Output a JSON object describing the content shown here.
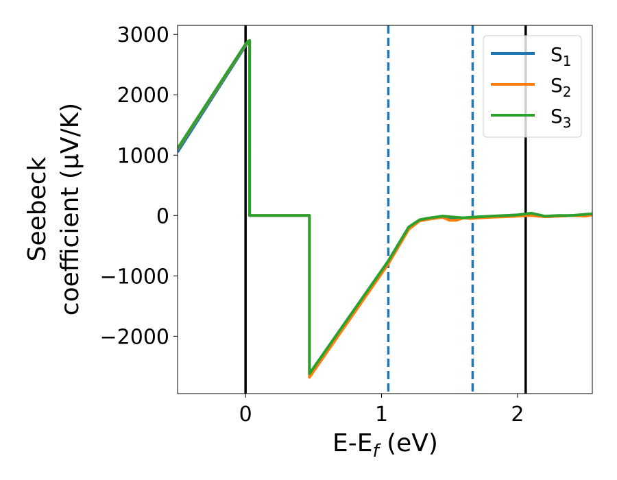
{
  "chart_data": {
    "type": "line",
    "xlabel_main": "E-E",
    "xlabel_sub": "f",
    "xlabel_unit": " (eV)",
    "ylabel_line1": "Seebeck",
    "ylabel_line2": "coefficient  (μV/K)",
    "xlim": [
      -0.5,
      2.55
    ],
    "ylim": [
      -2950,
      3150
    ],
    "xticks": [
      0,
      1,
      2
    ],
    "xtick_labels": [
      "0",
      "1",
      "2"
    ],
    "yticks": [
      -2000,
      -1000,
      0,
      1000,
      2000,
      3000
    ],
    "ytick_labels": [
      "−2000",
      "−1000",
      "0",
      "1000",
      "2000",
      "3000"
    ],
    "grid": false,
    "legend_position": "upper right",
    "vlines": [
      {
        "x": 0.0,
        "style": "solid",
        "color": "#000000"
      },
      {
        "x": 1.05,
        "style": "dashed",
        "color": "#1f77b4"
      },
      {
        "x": 1.67,
        "style": "dashed",
        "color": "#1f77b4"
      },
      {
        "x": 2.06,
        "style": "solid",
        "color": "#000000"
      }
    ],
    "series": [
      {
        "name": "S",
        "sub": "1",
        "color": "#1f77b4",
        "x": [
          -0.5,
          0.0,
          0.02,
          0.03,
          0.03,
          0.47,
          0.47,
          1.05,
          1.2,
          1.28,
          1.35,
          1.45,
          1.55,
          1.6,
          1.65,
          1.8,
          2.0,
          2.1,
          2.2,
          2.3,
          2.4,
          2.5,
          2.55
        ],
        "y": [
          1050,
          2810,
          2870,
          2880,
          0,
          0,
          -2640,
          -770,
          -200,
          -80,
          -50,
          -20,
          -50,
          -40,
          -40,
          -20,
          10,
          30,
          -20,
          -10,
          0,
          10,
          20
        ]
      },
      {
        "name": "S",
        "sub": "2",
        "color": "#ff7f0e",
        "x": [
          -0.5,
          0.0,
          0.02,
          0.03,
          0.03,
          0.47,
          0.47,
          1.05,
          1.2,
          1.28,
          1.35,
          1.45,
          1.5,
          1.55,
          1.6,
          1.65,
          1.8,
          2.0,
          2.1,
          2.2,
          2.3,
          2.4,
          2.5,
          2.55
        ],
        "y": [
          1100,
          2830,
          2880,
          2890,
          0,
          0,
          -2680,
          -800,
          -230,
          -90,
          -60,
          -30,
          -80,
          -80,
          -40,
          -50,
          -30,
          -10,
          0,
          -20,
          -10,
          0,
          -10,
          10
        ]
      },
      {
        "name": "S",
        "sub": "3",
        "color": "#2ca02c",
        "x": [
          -0.5,
          0.0,
          0.02,
          0.03,
          0.03,
          0.47,
          0.47,
          1.05,
          1.2,
          1.28,
          1.35,
          1.45,
          1.55,
          1.6,
          1.65,
          1.8,
          2.0,
          2.1,
          2.2,
          2.3,
          2.4,
          2.5,
          2.55
        ],
        "y": [
          1110,
          2840,
          2890,
          2900,
          0,
          0,
          -2620,
          -750,
          -190,
          -70,
          -40,
          -10,
          -30,
          -40,
          -30,
          -10,
          10,
          40,
          -10,
          0,
          0,
          20,
          30
        ]
      }
    ]
  }
}
